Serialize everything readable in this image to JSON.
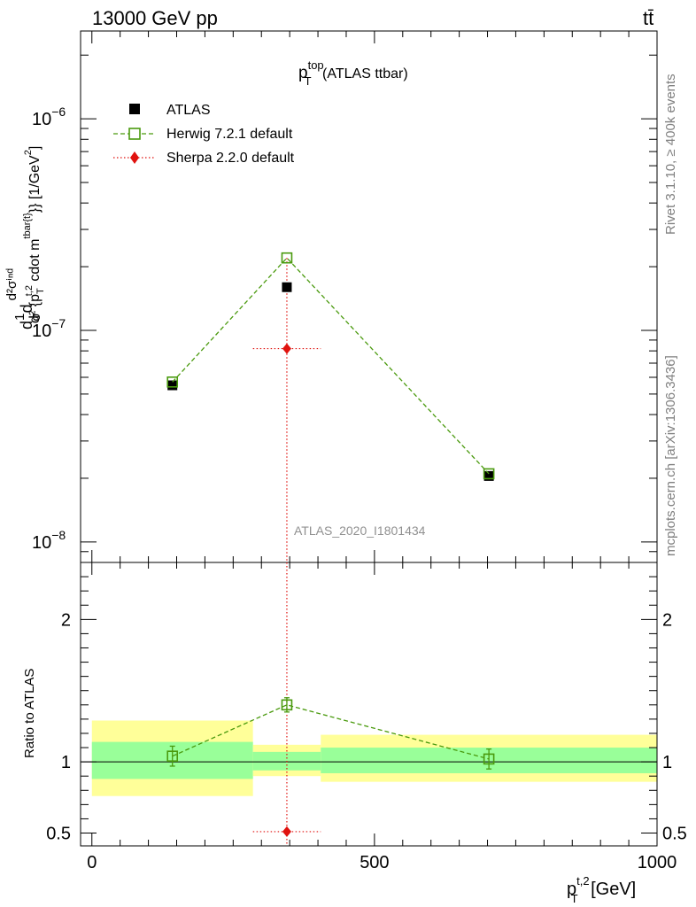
{
  "header": {
    "left": "13000 GeV pp",
    "right": "tt̄"
  },
  "side_labels": {
    "rivet": "Rivet 3.1.10, ≥ 400k events",
    "mcplots": "mcplots.cern.ch [arXiv:1306.3436]"
  },
  "analysis_label": "ATLAS_2020_I1801434",
  "chart_data": {
    "type": "scatter",
    "title": {
      "main": "p",
      "sup": "top",
      "sub": "T",
      "suffix": " (ATLAS ttbar)"
    },
    "ylabel": "d1dσd d²σⁱⁿᵈ / d²{p_T^{t,2} cdot m^{tbar{t}}} [1/GeV²]",
    "ylabel_parts": {
      "lead": "d",
      "frac1_num": "1",
      "frac1_den": "σ",
      "mid": "d",
      "frac2_num": "d²σⁱⁿᵈ",
      "frac2_den_a": "d² {p",
      "frac2_den_sub": "T",
      "frac2_den_sup": "t,2",
      "frac2_den_b": " cdot m",
      "frac2_den_sup2": "tbar{t}",
      "frac2_den_c": "}} [1/GeV",
      "frac2_den_sup3": "2",
      "frac2_den_d": "]"
    },
    "xlabel": {
      "main": "p",
      "sup": "t,2",
      "sub": "T",
      "suffix": " [GeV]"
    },
    "ratio_ylabel": "Ratio to ATLAS",
    "xlim": [
      -20,
      1000
    ],
    "ylim": [
      8e-09,
      2.6e-06
    ],
    "yscale": "log",
    "ratio_ylim": [
      0.41,
      2.4
    ],
    "x_ticks": [
      {
        "value": 0,
        "label": "0"
      },
      {
        "value": 500,
        "label": "500"
      },
      {
        "value": 1000,
        "label": "1000"
      }
    ],
    "y_ticks": [
      {
        "value": 1e-08,
        "base": "10",
        "exp": "−8"
      },
      {
        "value": 1e-07,
        "base": "10",
        "exp": "−7"
      },
      {
        "value": 1e-06,
        "base": "10",
        "exp": "−6"
      }
    ],
    "ratio_ticks": [
      {
        "value": 0.5,
        "label": "0.5"
      },
      {
        "value": 1,
        "label": "1"
      },
      {
        "value": 2,
        "label": "2"
      }
    ],
    "bins": [
      {
        "lo": 0,
        "hi": 285
      },
      {
        "lo": 285,
        "hi": 405
      },
      {
        "lo": 405,
        "hi": 1000
      }
    ],
    "series": [
      {
        "name": "ATLAS",
        "color": "#000000",
        "marker": "square-filled",
        "x": [
          142.5,
          345,
          702.5
        ],
        "y": [
          5.5e-08,
          1.6e-07,
          2.05e-08
        ],
        "band_stat": [
          [
            0.88,
            1.14
          ],
          [
            0.94,
            1.07
          ],
          [
            0.92,
            1.1
          ]
        ],
        "band_total": [
          [
            0.76,
            1.29
          ],
          [
            0.9,
            1.12
          ],
          [
            0.86,
            1.19
          ]
        ]
      },
      {
        "name": "Herwig 7.2.1 default",
        "color": "#4a9a0e",
        "marker": "square-open",
        "line": "dashed",
        "x": [
          142.5,
          345,
          702.5
        ],
        "y": [
          5.7e-08,
          2.2e-07,
          2.1e-08
        ],
        "y_err": [
          0.08,
          0.04,
          0.08
        ],
        "ratio": [
          1.04,
          1.4,
          1.02
        ],
        "ratio_err": [
          0.07,
          0.05,
          0.07
        ]
      },
      {
        "name": "Sherpa 2.2.0 default",
        "color": "#e0120e",
        "marker": "diamond-filled",
        "line": "dotted",
        "x": [
          345
        ],
        "y": [
          8.2e-08
        ],
        "x_lo": [
          285
        ],
        "x_hi": [
          405
        ],
        "ratio": [
          0.51
        ]
      }
    ],
    "legend_position": "top-left"
  },
  "colors": {
    "band_outer": "#ffff99",
    "band_inner": "#99ff99",
    "herwig": "#4a9a0e",
    "sherpa": "#e0120e",
    "side_text": "#808080"
  }
}
